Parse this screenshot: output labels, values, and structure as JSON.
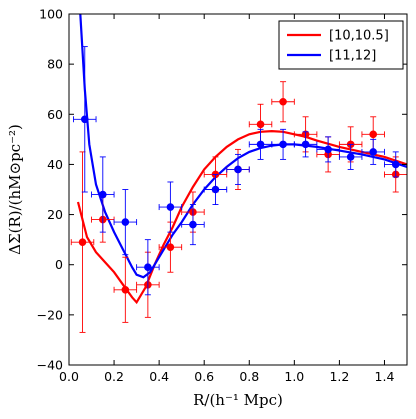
{
  "chart_data": {
    "type": "line",
    "xlabel": "R/(h⁻¹ Mpc)",
    "ylabel": "ΔΣ(R)/(hM⊙pc⁻²)",
    "xlim": [
      0.0,
      1.5
    ],
    "ylim": [
      -40,
      100
    ],
    "x_ticks": [
      0.0,
      0.2,
      0.4,
      0.6,
      0.8,
      1.0,
      1.2,
      1.4
    ],
    "x_tick_labels": [
      "0.0",
      "0.2",
      "0.4",
      "0.6",
      "0.8",
      "1.0",
      "1.2",
      "1.4"
    ],
    "y_ticks": [
      -40,
      -20,
      0,
      20,
      40,
      60,
      80,
      100
    ],
    "y_tick_labels": [
      "−40",
      "−20",
      "0",
      "20",
      "40",
      "60",
      "80",
      "100"
    ],
    "grid": false,
    "legend_position": "top-right",
    "series": [
      {
        "name": "[10,10.5]",
        "color": "#ff0000",
        "points": [
          {
            "x": 0.06,
            "y": 9,
            "yerr": 36,
            "xerr": 0.05
          },
          {
            "x": 0.15,
            "y": 18,
            "yerr": 9,
            "xerr": 0.05
          },
          {
            "x": 0.25,
            "y": -10,
            "yerr": 13,
            "xerr": 0.05
          },
          {
            "x": 0.35,
            "y": -8,
            "yerr": 13,
            "xerr": 0.05
          },
          {
            "x": 0.45,
            "y": 7,
            "yerr": 10,
            "xerr": 0.05
          },
          {
            "x": 0.55,
            "y": 21,
            "yerr": 8,
            "xerr": 0.05
          },
          {
            "x": 0.65,
            "y": 36,
            "yerr": 7,
            "xerr": 0.05
          },
          {
            "x": 0.75,
            "y": 38,
            "yerr": 8,
            "xerr": 0.05
          },
          {
            "x": 0.85,
            "y": 56,
            "yerr": 8,
            "xerr": 0.05
          },
          {
            "x": 0.95,
            "y": 65,
            "yerr": 8,
            "xerr": 0.05
          },
          {
            "x": 1.05,
            "y": 52,
            "yerr": 7,
            "xerr": 0.05
          },
          {
            "x": 1.15,
            "y": 44,
            "yerr": 7,
            "xerr": 0.05
          },
          {
            "x": 1.25,
            "y": 48,
            "yerr": 7,
            "xerr": 0.05
          },
          {
            "x": 1.35,
            "y": 52,
            "yerr": 7,
            "xerr": 0.05
          },
          {
            "x": 1.45,
            "y": 36,
            "yerr": 7,
            "xerr": 0.05
          }
        ],
        "model_x": [
          0.04,
          0.08,
          0.12,
          0.16,
          0.2,
          0.24,
          0.28,
          0.3,
          0.34,
          0.38,
          0.42,
          0.46,
          0.5,
          0.55,
          0.6,
          0.65,
          0.7,
          0.75,
          0.8,
          0.85,
          0.9,
          0.95,
          1.0,
          1.05,
          1.1,
          1.2,
          1.3,
          1.4,
          1.5
        ],
        "model_y": [
          25,
          11,
          5,
          1,
          -3,
          -8,
          -13,
          -15,
          -9,
          0,
          8,
          15,
          23,
          31,
          38,
          43,
          47,
          50,
          52,
          53,
          53.3,
          53,
          52,
          51,
          49.5,
          47,
          45,
          43,
          40
        ]
      },
      {
        "name": "[11,12]",
        "color": "#0000ff",
        "points": [
          {
            "x": 0.07,
            "y": 58,
            "yerr": 29,
            "xerr": 0.05
          },
          {
            "x": 0.15,
            "y": 28,
            "yerr": 15,
            "xerr": 0.05
          },
          {
            "x": 0.25,
            "y": 17,
            "yerr": 13,
            "xerr": 0.05
          },
          {
            "x": 0.35,
            "y": -1,
            "yerr": 11,
            "xerr": 0.05
          },
          {
            "x": 0.45,
            "y": 23,
            "yerr": 10,
            "xerr": 0.05
          },
          {
            "x": 0.55,
            "y": 16,
            "yerr": 8,
            "xerr": 0.05
          },
          {
            "x": 0.65,
            "y": 30,
            "yerr": 6,
            "xerr": 0.05
          },
          {
            "x": 0.75,
            "y": 38,
            "yerr": 6,
            "xerr": 0.05
          },
          {
            "x": 0.85,
            "y": 48,
            "yerr": 6,
            "xerr": 0.05
          },
          {
            "x": 0.95,
            "y": 48,
            "yerr": 6,
            "xerr": 0.05
          },
          {
            "x": 1.05,
            "y": 48,
            "yerr": 5,
            "xerr": 0.05
          },
          {
            "x": 1.15,
            "y": 46,
            "yerr": 5,
            "xerr": 0.05
          },
          {
            "x": 1.25,
            "y": 43,
            "yerr": 5,
            "xerr": 0.05
          },
          {
            "x": 1.35,
            "y": 45,
            "yerr": 5,
            "xerr": 0.05
          },
          {
            "x": 1.45,
            "y": 40,
            "yerr": 5,
            "xerr": 0.05
          }
        ],
        "model_x": [
          0.05,
          0.07,
          0.09,
          0.12,
          0.16,
          0.2,
          0.24,
          0.28,
          0.3,
          0.33,
          0.36,
          0.38,
          0.42,
          0.46,
          0.5,
          0.55,
          0.6,
          0.65,
          0.7,
          0.75,
          0.8,
          0.85,
          0.9,
          0.95,
          1.0,
          1.1,
          1.2,
          1.3,
          1.4,
          1.5
        ],
        "model_y": [
          100,
          70,
          48,
          32,
          21,
          13,
          6,
          -1,
          -4,
          -5,
          -3,
          0,
          6,
          12,
          17,
          24,
          30,
          35,
          39,
          42.5,
          45,
          46.5,
          47.5,
          48,
          48,
          47,
          45.5,
          44,
          42,
          39
        ]
      }
    ]
  }
}
